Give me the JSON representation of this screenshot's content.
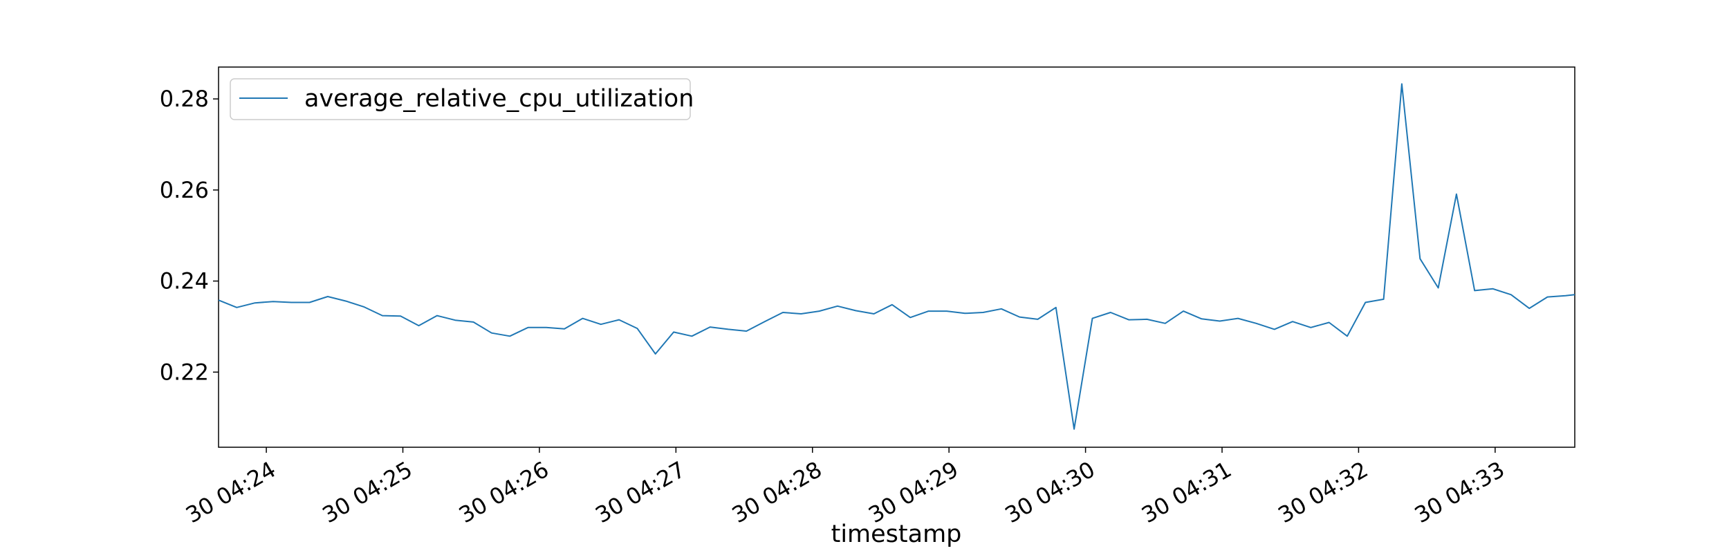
{
  "chart_data": {
    "type": "line",
    "title": "",
    "xlabel": "timestamp",
    "ylabel": "",
    "grid": false,
    "legend_placement": "top-left",
    "ylim": [
      0.2035,
      0.287
    ],
    "y_ticks": [
      0.22,
      0.24,
      0.26,
      0.28
    ],
    "y_tick_labels": [
      "0.22",
      "0.24",
      "0.26",
      "0.28"
    ],
    "x_range": [
      "04:23:39",
      "04:33:35"
    ],
    "x_ticks": [
      "04:24",
      "04:25",
      "04:26",
      "04:27",
      "04:28",
      "04:29",
      "04:30",
      "04:31",
      "04:32",
      "04:33"
    ],
    "x_tick_labels": [
      "30 04:24",
      "30 04:25",
      "30 04:26",
      "30 04:27",
      "30 04:28",
      "30 04:29",
      "30 04:30",
      "30 04:31",
      "30 04:32",
      "30 04:33"
    ],
    "series": [
      {
        "name": "average_relative_cpu_utilization",
        "color": "#1f77b4",
        "x": [
          "04:23:39",
          "04:23:47",
          "04:23:55",
          "04:24:03",
          "04:24:11",
          "04:24:19",
          "04:24:27",
          "04:24:35",
          "04:24:43",
          "04:24:51",
          "04:24:59",
          "04:25:07",
          "04:25:15",
          "04:25:23",
          "04:25:31",
          "04:25:39",
          "04:25:47",
          "04:25:55",
          "04:26:03",
          "04:26:11",
          "04:26:19",
          "04:26:27",
          "04:26:35",
          "04:26:43",
          "04:26:51",
          "04:26:59",
          "04:27:07",
          "04:27:15",
          "04:27:23",
          "04:27:31",
          "04:27:39",
          "04:27:47",
          "04:27:55",
          "04:28:03",
          "04:28:11",
          "04:28:19",
          "04:28:27",
          "04:28:35",
          "04:28:43",
          "04:28:51",
          "04:28:59",
          "04:29:07",
          "04:29:15",
          "04:29:23",
          "04:29:31",
          "04:29:39",
          "04:29:47",
          "04:29:55",
          "04:30:03",
          "04:30:11",
          "04:30:19",
          "04:30:27",
          "04:30:35",
          "04:30:43",
          "04:30:51",
          "04:30:59",
          "04:31:07",
          "04:31:15",
          "04:31:23",
          "04:31:31",
          "04:31:39",
          "04:31:47",
          "04:31:55",
          "04:32:03",
          "04:32:11",
          "04:32:19",
          "04:32:27",
          "04:32:35",
          "04:32:43",
          "04:32:51",
          "04:32:59",
          "04:33:07",
          "04:33:15",
          "04:33:23",
          "04:33:31",
          "04:33:35"
        ],
        "values": [
          0.2358,
          0.2342,
          0.2352,
          0.2355,
          0.2353,
          0.2353,
          0.2366,
          0.2356,
          0.2343,
          0.2324,
          0.2323,
          0.2302,
          0.2324,
          0.2314,
          0.231,
          0.2286,
          0.2279,
          0.2298,
          0.2298,
          0.2295,
          0.2318,
          0.2305,
          0.2315,
          0.2296,
          0.224,
          0.2288,
          0.2279,
          0.2299,
          0.2294,
          0.229,
          0.2311,
          0.2331,
          0.2328,
          0.2334,
          0.2345,
          0.2335,
          0.2328,
          0.2348,
          0.232,
          0.2334,
          0.2334,
          0.2329,
          0.2331,
          0.2339,
          0.2321,
          0.2316,
          0.2342,
          0.2075,
          0.2318,
          0.2331,
          0.2315,
          0.2316,
          0.2307,
          0.2334,
          0.2317,
          0.2312,
          0.2318,
          0.2307,
          0.2294,
          0.2311,
          0.2298,
          0.2309,
          0.2279,
          0.2353,
          0.236,
          0.2833,
          0.2449,
          0.2385,
          0.2591,
          0.2379,
          0.2383,
          0.237,
          0.234,
          0.2365,
          0.2368,
          0.237
        ]
      }
    ]
  }
}
